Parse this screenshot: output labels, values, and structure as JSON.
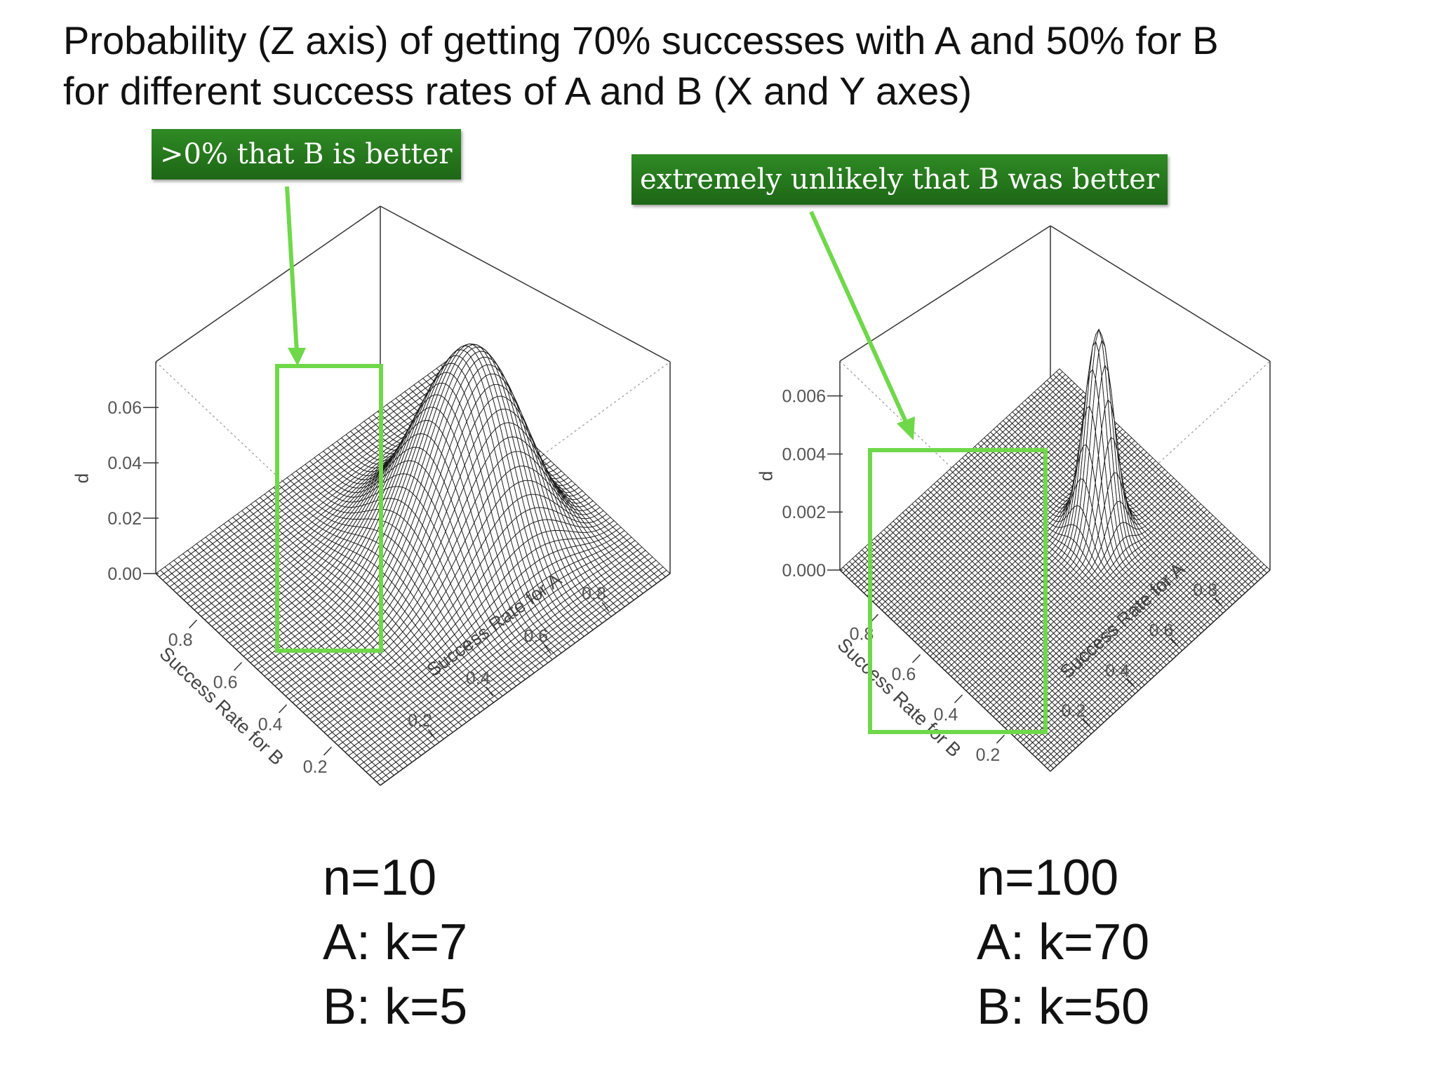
{
  "slide": {
    "title_line1": "Probability (Z axis) of getting 70% successes with A and 50% for B",
    "title_line2": "for different success rates of A and B (X and Y axes)",
    "left_callout": ">0% that B is better",
    "right_callout": "extremely unlikely that B was better",
    "left_caption": [
      "n=10",
      "A: k=7",
      "B: k=5"
    ],
    "right_caption": [
      "n=100",
      "A: k=70",
      "B: k=50"
    ],
    "highlight_color": "#6fd84a",
    "callout_color": "#257a1c"
  },
  "chart_data": [
    {
      "type": "surface",
      "surface": "binomial likelihood p = C(10,7)a^7(1-a)^3 · C(10,5)b^5(1-b)^5",
      "n": 10,
      "A_successes": 7,
      "B_successes": 5,
      "xlabel": "Success Rate for A",
      "ylabel": "Success Rate for B",
      "zlabel": "p",
      "x_ticks": [
        0.2,
        0.4,
        0.6,
        0.8
      ],
      "y_ticks": [
        0.2,
        0.4,
        0.6,
        0.8
      ],
      "z_tick_labels": [
        "0.00",
        "0.02",
        "0.04",
        "0.06"
      ],
      "z_ticks": [
        0,
        0.02,
        0.04,
        0.06
      ],
      "xlim": [
        0,
        1
      ],
      "ylim": [
        0,
        1
      ],
      "zlim": [
        0,
        0.0765
      ]
    },
    {
      "type": "surface",
      "surface": "binomial likelihood p = C(100,70)a^70(1-a)^30 · C(100,50)b^50(1-b)^50",
      "n": 100,
      "A_successes": 70,
      "B_successes": 50,
      "xlabel": "Success Rate for A",
      "ylabel": "Success Rate for B",
      "zlabel": "p",
      "x_ticks": [
        0.2,
        0.4,
        0.6,
        0.8
      ],
      "y_ticks": [
        0.2,
        0.4,
        0.6,
        0.8
      ],
      "z_tick_labels": [
        "0.000",
        "0.002",
        "0.004",
        "0.006"
      ],
      "z_ticks": [
        0,
        0.002,
        0.004,
        0.006
      ],
      "xlim": [
        0,
        1
      ],
      "ylim": [
        0,
        1
      ],
      "zlim": [
        0,
        0.0072
      ]
    }
  ]
}
